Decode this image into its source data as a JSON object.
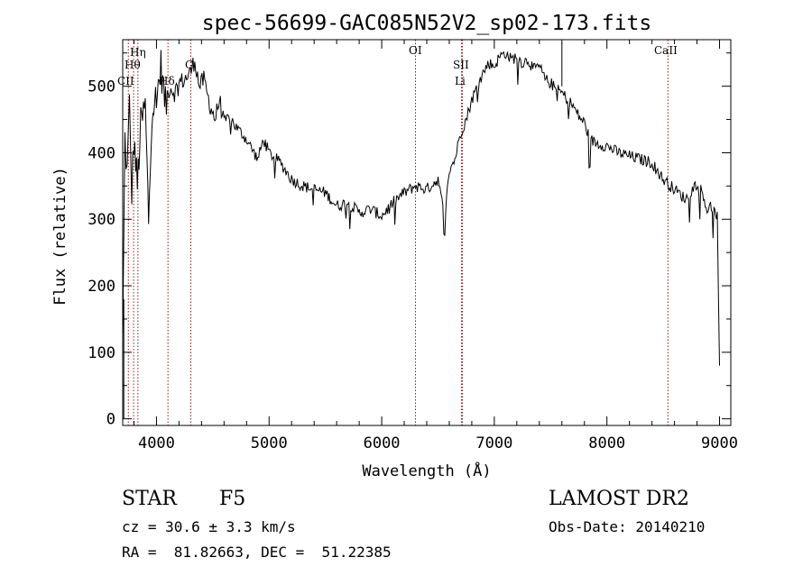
{
  "chart_data": {
    "type": "line",
    "title": "spec-56699-GAC085N52V2_sp02-173.fits",
    "xlabel": "Wavelength (Å)",
    "ylabel": "Flux (relative)",
    "xlim": [
      3700,
      9100
    ],
    "ylim": [
      -10,
      570
    ],
    "x_ticks": [
      4000,
      5000,
      6000,
      7000,
      8000,
      9000
    ],
    "y_ticks": [
      0,
      100,
      200,
      300,
      400,
      500
    ],
    "grid": false,
    "line_color": "#000000",
    "marker_color": "#8b1a1a",
    "series": [
      {
        "x": [
          3700,
          3720,
          3740,
          3760,
          3780,
          3800,
          3830,
          3860,
          3900,
          3930,
          3960,
          4000,
          4040,
          4080,
          4120,
          4160,
          4200,
          4250,
          4300,
          4340,
          4380,
          4420,
          4470,
          4520,
          4560,
          4600,
          4650,
          4700,
          4750,
          4800,
          4850,
          4900,
          4950,
          5000,
          5100,
          5200,
          5300,
          5400,
          5500,
          5600,
          5700,
          5800,
          5900,
          6000,
          6100,
          6200,
          6300,
          6400,
          6500,
          6560,
          6600,
          6650,
          6700,
          6750,
          6800,
          6850,
          6900,
          6950,
          7000,
          7050,
          7100,
          7150,
          7200,
          7250,
          7300,
          7350,
          7400,
          7450,
          7500,
          7550,
          7600,
          7650,
          7700,
          7750,
          7800,
          7850,
          7900,
          8000,
          8100,
          8200,
          8300,
          8400,
          8500,
          8600,
          8700,
          8800,
          8850,
          8880,
          8900,
          8920,
          8950,
          8980,
          9000
        ],
        "y": [
          110,
          420,
          370,
          470,
          340,
          420,
          350,
          440,
          470,
          300,
          470,
          480,
          530,
          470,
          500,
          490,
          505,
          510,
          520,
          540,
          500,
          510,
          475,
          450,
          480,
          445,
          455,
          440,
          430,
          420,
          405,
          390,
          420,
          400,
          385,
          360,
          350,
          345,
          340,
          320,
          325,
          310,
          315,
          305,
          325,
          340,
          350,
          345,
          360,
          300,
          375,
          390,
          430,
          450,
          480,
          500,
          520,
          535,
          530,
          545,
          550,
          540,
          545,
          535,
          540,
          525,
          530,
          510,
          505,
          495,
          490,
          480,
          470,
          455,
          445,
          420,
          415,
          410,
          400,
          395,
          390,
          385,
          360,
          345,
          330,
          355,
          340,
          320,
          310,
          320,
          310,
          305,
          80
        ]
      }
    ],
    "lines": [
      {
        "label": "Hη",
        "x": 3835
      },
      {
        "label": "Hθ",
        "x": 3797
      },
      {
        "label": "CII",
        "x": 3750
      },
      {
        "label": "Hδ",
        "x": 4102
      },
      {
        "label": "G",
        "x": 4305
      },
      {
        "label": "OI",
        "x": 6300
      },
      {
        "label": "SII",
        "x": 6716
      },
      {
        "label": "Li",
        "x": 6708
      },
      {
        "label": "CaII",
        "x": 8542
      }
    ]
  },
  "info": {
    "class_label": "STAR",
    "subclass": "F5",
    "survey": "LAMOST DR2",
    "cz": "cz = 30.6 ± 3.3 km/s",
    "obs_date": "Obs-Date: 20140210",
    "coords": "RA =  81.82663, DEC =  51.22385"
  }
}
